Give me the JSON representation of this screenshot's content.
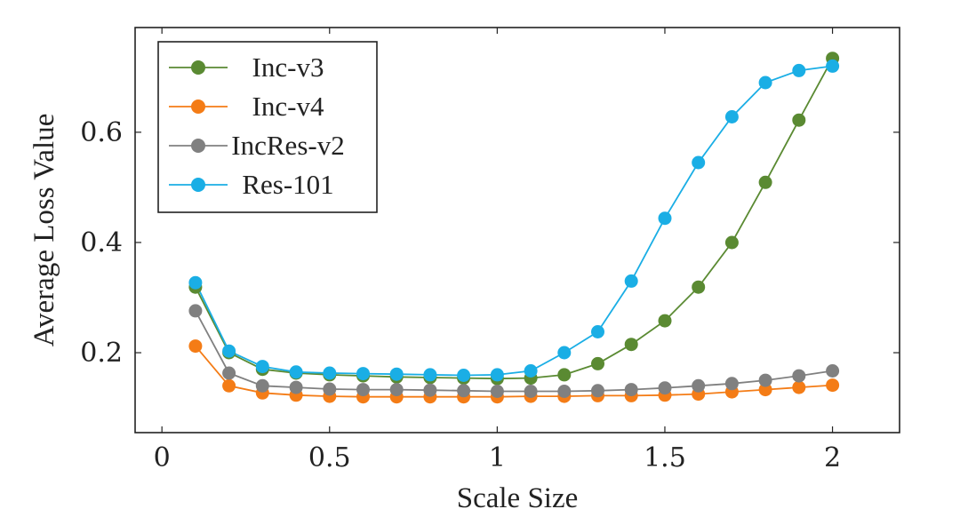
{
  "chart_data": {
    "type": "line",
    "title": "",
    "xlabel": "Scale Size",
    "ylabel": "Average Loss Value",
    "xlim": [
      -0.08,
      2.2
    ],
    "ylim": [
      0.055,
      0.79
    ],
    "xticks": [
      0,
      0.5,
      1,
      1.5,
      2
    ],
    "xtick_labels": [
      "0",
      "0.5",
      "1",
      "1.5",
      "2"
    ],
    "yticks": [
      0.2,
      0.4,
      0.6
    ],
    "ytick_labels": [
      "0.2",
      "0.4",
      "0.6"
    ],
    "grid": false,
    "legend_position": "top-left",
    "x": [
      0.1,
      0.2,
      0.3,
      0.4,
      0.5,
      0.6,
      0.7,
      0.8,
      0.9,
      1.0,
      1.1,
      1.2,
      1.3,
      1.4,
      1.5,
      1.6,
      1.7,
      1.8,
      1.9,
      2.0
    ],
    "series": [
      {
        "name": "Inc-v3",
        "color": "#5a8a32",
        "values": [
          0.319,
          0.2,
          0.17,
          0.163,
          0.16,
          0.158,
          0.156,
          0.155,
          0.154,
          0.153,
          0.154,
          0.16,
          0.18,
          0.215,
          0.258,
          0.319,
          0.4,
          0.509,
          0.622,
          0.734
        ]
      },
      {
        "name": "Inc-v4",
        "color": "#f47c16",
        "values": [
          0.212,
          0.14,
          0.127,
          0.123,
          0.121,
          0.12,
          0.12,
          0.12,
          0.12,
          0.12,
          0.121,
          0.121,
          0.122,
          0.122,
          0.123,
          0.125,
          0.129,
          0.133,
          0.137,
          0.141
        ]
      },
      {
        "name": "IncRes-v2",
        "color": "#808080",
        "values": [
          0.276,
          0.163,
          0.14,
          0.137,
          0.134,
          0.133,
          0.133,
          0.132,
          0.131,
          0.13,
          0.13,
          0.13,
          0.131,
          0.133,
          0.136,
          0.14,
          0.144,
          0.15,
          0.158,
          0.167
        ]
      },
      {
        "name": "Res-101",
        "color": "#1aaee5",
        "values": [
          0.327,
          0.203,
          0.175,
          0.165,
          0.163,
          0.162,
          0.161,
          0.16,
          0.159,
          0.16,
          0.167,
          0.2,
          0.238,
          0.33,
          0.444,
          0.545,
          0.628,
          0.69,
          0.712,
          0.72
        ]
      }
    ]
  }
}
